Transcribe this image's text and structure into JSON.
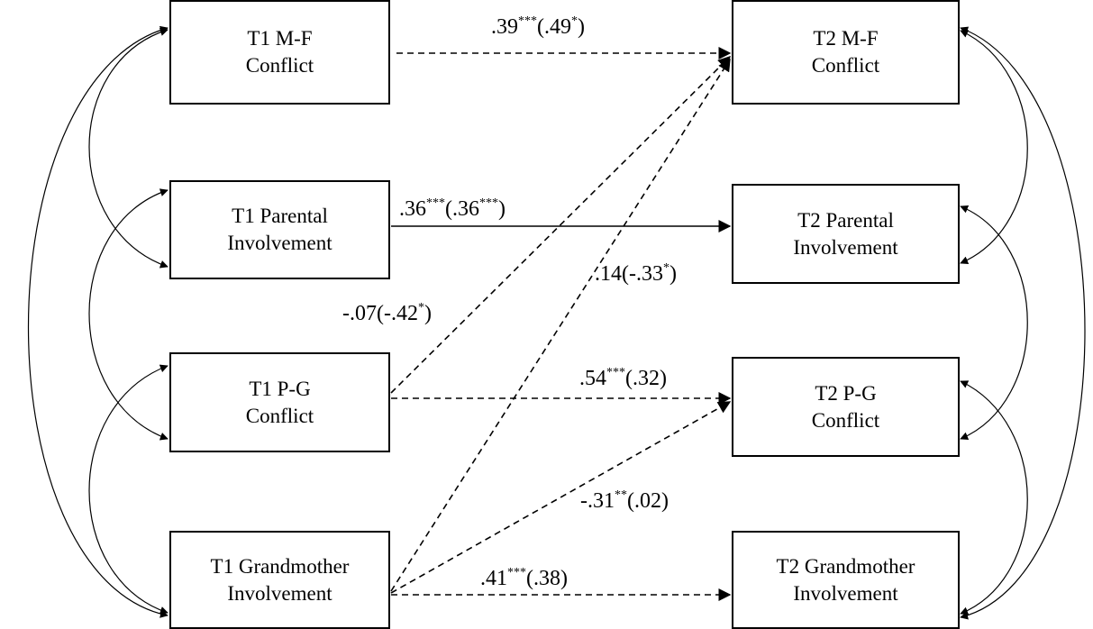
{
  "boxes": {
    "t1_mf": {
      "line1": "T1 M-F",
      "line2": "Conflict"
    },
    "t1_pi": {
      "line1": "T1 Parental",
      "line2": "Involvement"
    },
    "t1_pg": {
      "line1": "T1 P-G",
      "line2": "Conflict"
    },
    "t1_gi": {
      "line1": "T1 Grandmother",
      "line2": "Involvement"
    },
    "t2_mf": {
      "line1": "T2 M-F",
      "line2": "Conflict"
    },
    "t2_pi": {
      "line1": "T2 Parental",
      "line2": "Involvement"
    },
    "t2_pg": {
      "line1": "T2 P-G",
      "line2": "Conflict"
    },
    "t2_gi": {
      "line1": "T2 Grandmother",
      "line2": "Involvement"
    }
  },
  "paths": {
    "mf_mf": {
      "coef": ".39",
      "sig": "***",
      "paren": "(.49",
      "paren_sig": "*",
      "close": ")"
    },
    "pi_pi": {
      "coef": ".36",
      "sig": "***",
      "paren": "(.36",
      "paren_sig": "***",
      "close": ")"
    },
    "gi_mf": {
      "coef": ".14(-.33",
      "sig": "*",
      "close": ")"
    },
    "pg_mf": {
      "coef": "-.07(-.42",
      "sig": "*",
      "close": ")"
    },
    "pg_pg": {
      "coef": ".54",
      "sig": "***",
      "rest": "(.32)"
    },
    "gi_pg": {
      "coef": "-.31",
      "sig": "**",
      "rest": "(.02)"
    },
    "gi_gi": {
      "coef": ".41",
      "sig": "***",
      "rest": "(.38)"
    }
  },
  "line_styles": {
    "solid": "significant both groups",
    "dashed": "other paths"
  }
}
